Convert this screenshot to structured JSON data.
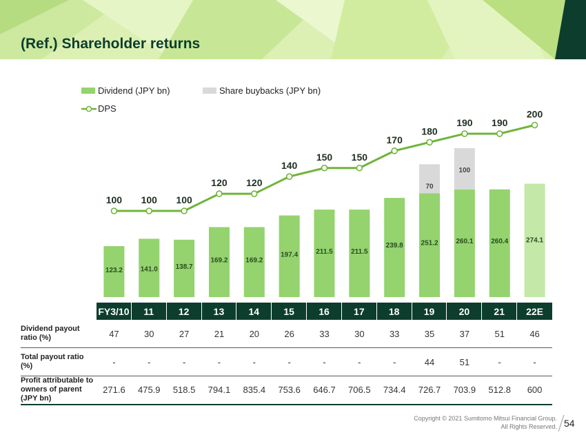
{
  "header": {
    "title": "(Ref.) Shareholder returns"
  },
  "legend": {
    "dividend": "Dividend (JPY bn)",
    "buybacks": "Share buybacks (JPY bn)",
    "dps": "DPS"
  },
  "colors": {
    "dividend": "#94d36e",
    "dividend_estimate": "#c4e8a8",
    "buybacks": "#d9d9d9",
    "dps": "#6fb43a",
    "axis_bg": "#0d3d2d",
    "title": "#0b3d2c"
  },
  "chart_data": {
    "type": "bar",
    "categories": [
      "FY3/10",
      "11",
      "12",
      "13",
      "14",
      "15",
      "16",
      "17",
      "18",
      "19",
      "20",
      "21",
      "22E"
    ],
    "series": [
      {
        "name": "Dividend (JPY bn)",
        "values": [
          123.2,
          141.0,
          138.7,
          169.2,
          169.2,
          197.4,
          211.5,
          211.5,
          239.8,
          251.2,
          260.1,
          260.4,
          274.1
        ],
        "labels": [
          "123.2",
          "141.0",
          "138.7",
          "169.2",
          "169.2",
          "197.4",
          "211.5",
          "211.5",
          "239.8",
          "251.2",
          "260.1",
          "260.4",
          "274.1"
        ]
      },
      {
        "name": "Share buybacks (JPY bn)",
        "values": [
          null,
          null,
          null,
          null,
          null,
          null,
          null,
          null,
          null,
          70,
          100,
          null,
          null
        ],
        "labels": [
          "",
          "",
          "",
          "",
          "",
          "",
          "",
          "",
          "",
          "70",
          "100",
          "",
          ""
        ]
      },
      {
        "name": "DPS",
        "values": [
          100,
          100,
          100,
          120,
          120,
          140,
          150,
          150,
          170,
          180,
          190,
          190,
          200
        ]
      }
    ]
  },
  "table": {
    "rows": [
      {
        "label": "Dividend payout ratio (%)",
        "values": [
          "47",
          "30",
          "27",
          "21",
          "20",
          "26",
          "33",
          "30",
          "33",
          "35",
          "37",
          "51",
          "46"
        ]
      },
      {
        "label": "Total payout ratio (%)",
        "values": [
          "-",
          "-",
          "-",
          "-",
          "-",
          "-",
          "-",
          "-",
          "-",
          "44",
          "51",
          "-",
          "-"
        ]
      },
      {
        "label": "Profit attributable to owners of parent (JPY bn)",
        "values": [
          "271.6",
          "475.9",
          "518.5",
          "794.1",
          "835.4",
          "753.6",
          "646.7",
          "706.5",
          "734.4",
          "726.7",
          "703.9",
          "512.8",
          "600"
        ]
      }
    ]
  },
  "footer": {
    "copyright": "Copyright © 2021 Sumitomo Mitsui Financial Group.",
    "rights": "All Rights Reserved.",
    "page": "54"
  }
}
